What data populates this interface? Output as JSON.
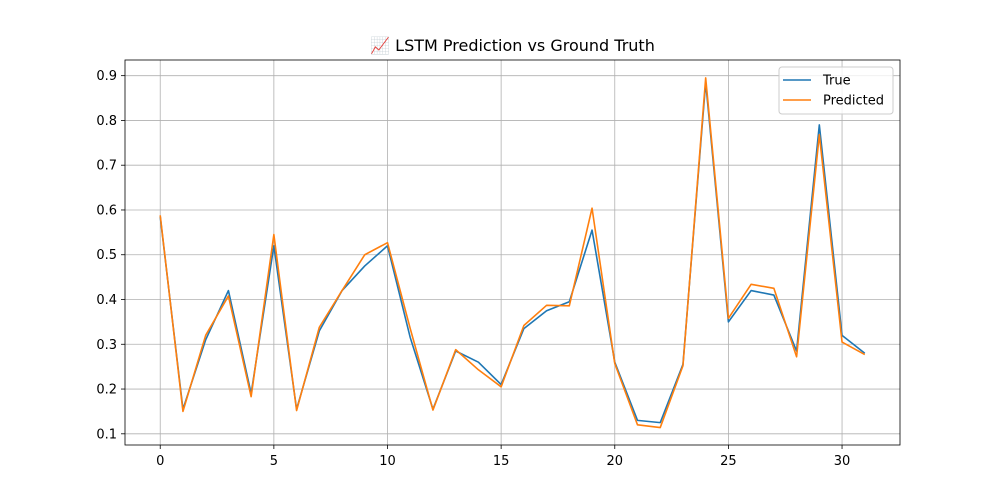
{
  "chart_data": {
    "type": "line",
    "title": "📈 LSTM Prediction vs Ground Truth",
    "xlabel": "",
    "ylabel": "",
    "xlim": [
      -1.55,
      32.55
    ],
    "ylim": [
      0.075,
      0.935
    ],
    "xticks": [
      0,
      5,
      10,
      15,
      20,
      25,
      30
    ],
    "yticks": [
      0.1,
      0.2,
      0.3,
      0.4,
      0.5,
      0.6,
      0.7,
      0.8,
      0.9
    ],
    "grid": true,
    "legend_position": "top-right",
    "x": [
      0,
      1,
      2,
      3,
      4,
      5,
      6,
      7,
      8,
      9,
      10,
      11,
      12,
      13,
      14,
      15,
      16,
      17,
      18,
      19,
      20,
      21,
      22,
      23,
      24,
      25,
      26,
      27,
      28,
      29,
      30,
      31
    ],
    "series": [
      {
        "name": "True",
        "color": "#1f77b4",
        "values": [
          0.585,
          0.155,
          0.31,
          0.42,
          0.19,
          0.52,
          0.155,
          0.33,
          0.42,
          0.475,
          0.52,
          0.315,
          0.155,
          0.285,
          0.26,
          0.21,
          0.335,
          0.375,
          0.395,
          0.555,
          0.26,
          0.13,
          0.125,
          0.255,
          0.885,
          0.35,
          0.42,
          0.41,
          0.285,
          0.79,
          0.32,
          0.28
        ]
      },
      {
        "name": "Predicted",
        "color": "#ff7f0e",
        "values": [
          0.588,
          0.15,
          0.32,
          0.408,
          0.183,
          0.545,
          0.152,
          0.338,
          0.42,
          0.5,
          0.527,
          0.335,
          0.153,
          0.288,
          0.243,
          0.205,
          0.342,
          0.387,
          0.386,
          0.604,
          0.257,
          0.12,
          0.114,
          0.252,
          0.895,
          0.358,
          0.434,
          0.425,
          0.272,
          0.768,
          0.305,
          0.277
        ]
      }
    ]
  }
}
